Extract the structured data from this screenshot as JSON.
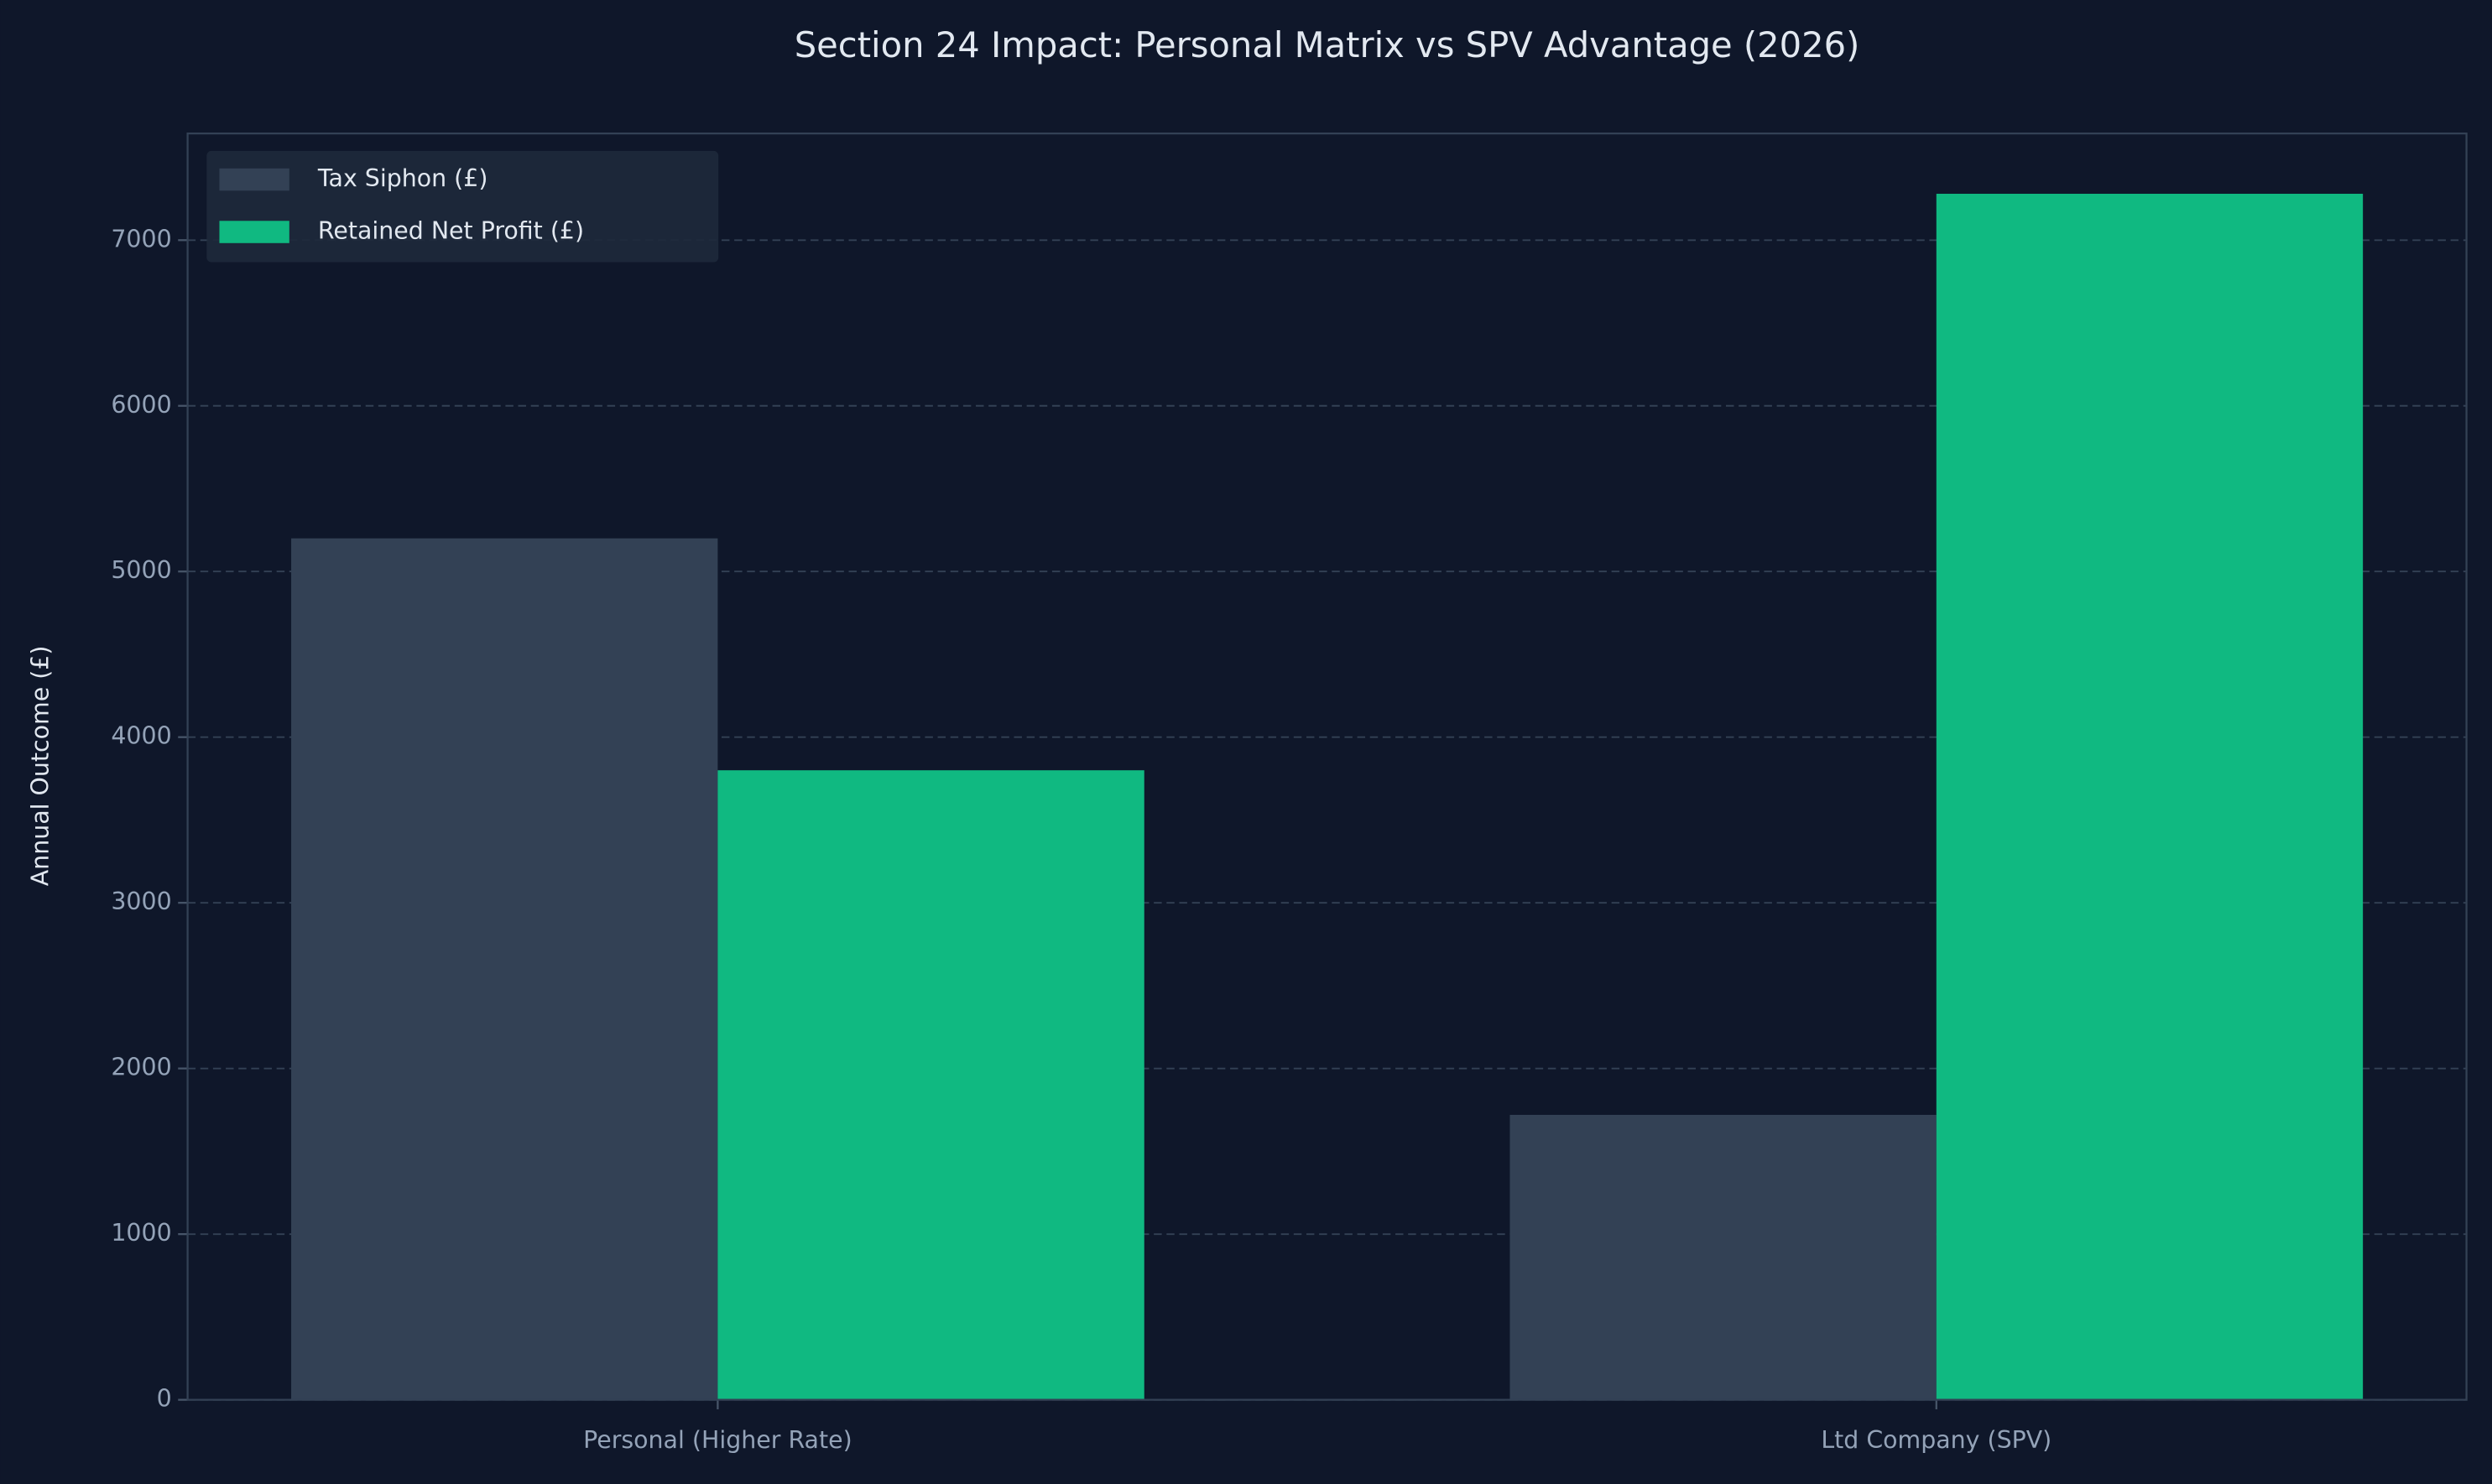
{
  "chart_data": {
    "type": "bar",
    "title": "Section 24 Impact: Personal Matrix vs SPV Advantage (2026)",
    "y_label": "Annual Outcome (£)",
    "categories": [
      "Personal (Higher Rate)",
      "Ltd Company (SPV)"
    ],
    "series": [
      {
        "name": "Tax Siphon (£)",
        "color": "#334155",
        "values": [
          5200,
          1720
        ]
      },
      {
        "name": "Retained Net Profit (£)",
        "color": "#10b981",
        "values": [
          3800,
          7280
        ]
      }
    ],
    "ylim": [
      0,
      7644
    ],
    "yticks": [
      0,
      1000,
      2000,
      3000,
      4000,
      5000,
      6000,
      7000
    ],
    "grid": true,
    "legend": "upper left"
  }
}
